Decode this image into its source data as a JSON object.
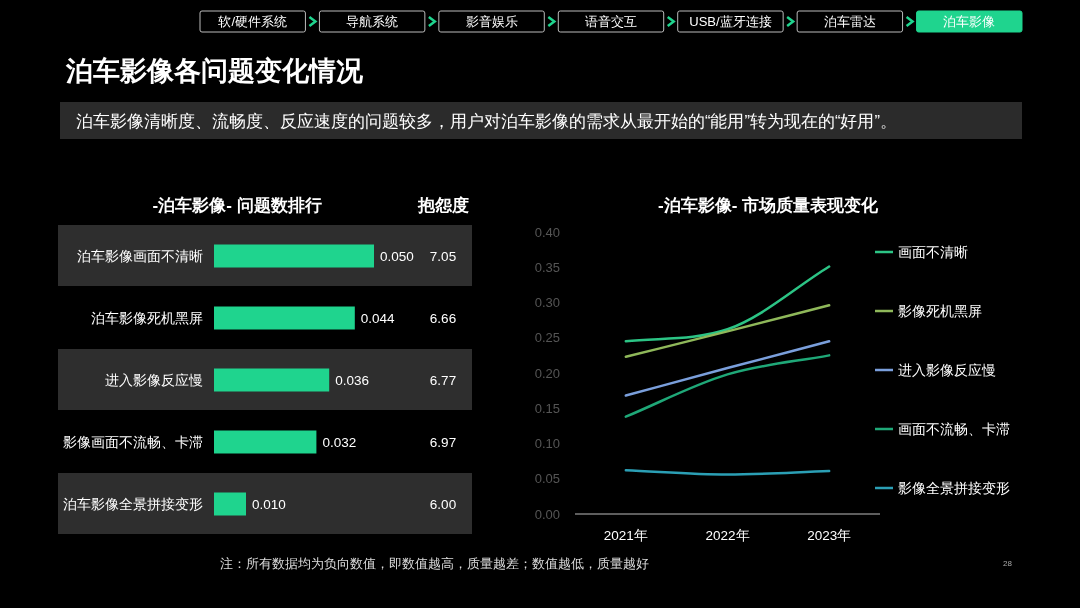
{
  "chart_data": [
    {
      "type": "other",
      "title": "泊车影像各问题变化情况",
      "subtitle": "泊车影像清晰度、流畅度、反应速度的问题较多，用户对泊车影像的需求从最开始的“能用”转为现在的“好用”。",
      "annotations": [
        "软/硬件系统",
        "导航系统",
        "影音娱乐",
        "语音交互",
        "USB/蓝牙连接",
        "泊车雷达",
        "泊车影像",
        "注：所有数据均为负向数值，即数值越高，质量越差；数值越低，质量越好",
        "28"
      ]
    },
    {
      "type": "bar",
      "orientation": "horizontal",
      "title": "-泊车影像- 问题数排行",
      "categories": [
        "泊车影像画面不清晰",
        "泊车影像死机黑屏",
        "进入影像反应慢",
        "影像画面不流畅、卡滞",
        "泊车影像全景拼接变形"
      ],
      "values": [
        0.05,
        0.044,
        0.036,
        0.032,
        0.01
      ],
      "value_labels": [
        "0.050",
        "0.044",
        "0.036",
        "0.032",
        "0.010"
      ],
      "color": "#1fd48e",
      "annotations": [
        "抱怨度",
        "7.05",
        "6.66",
        "6.77",
        "6.97",
        "6.00"
      ]
    },
    {
      "type": "line",
      "title": "-泊车影像- 市场质量表现变化",
      "categories": [
        "2021年",
        "2022年",
        "2023年"
      ],
      "ylim": [
        0,
        0.4
      ],
      "yticks": [
        {
          "value": 0,
          "label": "0.00"
        },
        {
          "value": 0.05,
          "label": "0.05"
        },
        {
          "value": 0.1,
          "label": "0.10"
        },
        {
          "value": 0.15,
          "label": "0.15"
        },
        {
          "value": 0.2,
          "label": "0.20"
        },
        {
          "value": 0.25,
          "label": "0.25"
        },
        {
          "value": 0.3,
          "label": "0.30"
        },
        {
          "value": 0.35,
          "label": "0.35"
        },
        {
          "value": 0.4,
          "label": "0.40"
        }
      ],
      "legend": "right",
      "series": [
        {
          "name": "画面不清晰",
          "color": "#2cc485",
          "values": [
            0.245,
            0.262,
            0.351
          ]
        },
        {
          "name": "影像死机黑屏",
          "color": "#8fb85a",
          "values": [
            0.223,
            0.259,
            0.296
          ]
        },
        {
          "name": "进入影像反应慢",
          "color": "#7a9fdc",
          "values": [
            0.168,
            0.207,
            0.245
          ]
        },
        {
          "name": "画面不流畅、卡滞",
          "color": "#1fa878",
          "values": [
            0.138,
            0.198,
            0.225
          ]
        },
        {
          "name": "影像全景拼接变形",
          "color": "#2b9fb5",
          "values": [
            0.062,
            0.056,
            0.061
          ]
        }
      ]
    }
  ]
}
